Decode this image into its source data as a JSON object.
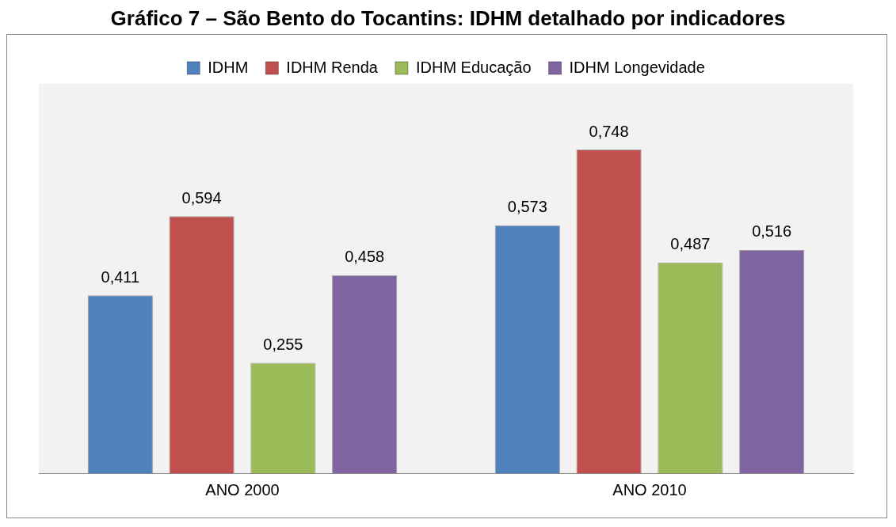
{
  "chart_data": {
    "type": "bar",
    "title": "Gráfico 7 – São Bento do Tocantins: IDHM detalhado por indicadores",
    "categories": [
      "ANO 2000",
      "ANO 2010"
    ],
    "series": [
      {
        "name": "IDHM",
        "color": "#4f81bd",
        "values": [
          0.411,
          0.573
        ],
        "value_labels": [
          "0,411",
          "0,573"
        ]
      },
      {
        "name": "IDHM Renda",
        "color": "#c0504d",
        "values": [
          0.594,
          0.748
        ],
        "value_labels": [
          "0,594",
          "0,748"
        ]
      },
      {
        "name": "IDHM Educação",
        "color": "#9bbb59",
        "values": [
          0.255,
          0.487
        ],
        "value_labels": [
          "0,255",
          "0,487"
        ]
      },
      {
        "name": "IDHM Longevidade",
        "color": "#8064a2",
        "values": [
          0.458,
          0.516
        ],
        "value_labels": [
          "0,458",
          "0,516"
        ]
      }
    ],
    "legend": "top",
    "grid": false
  }
}
